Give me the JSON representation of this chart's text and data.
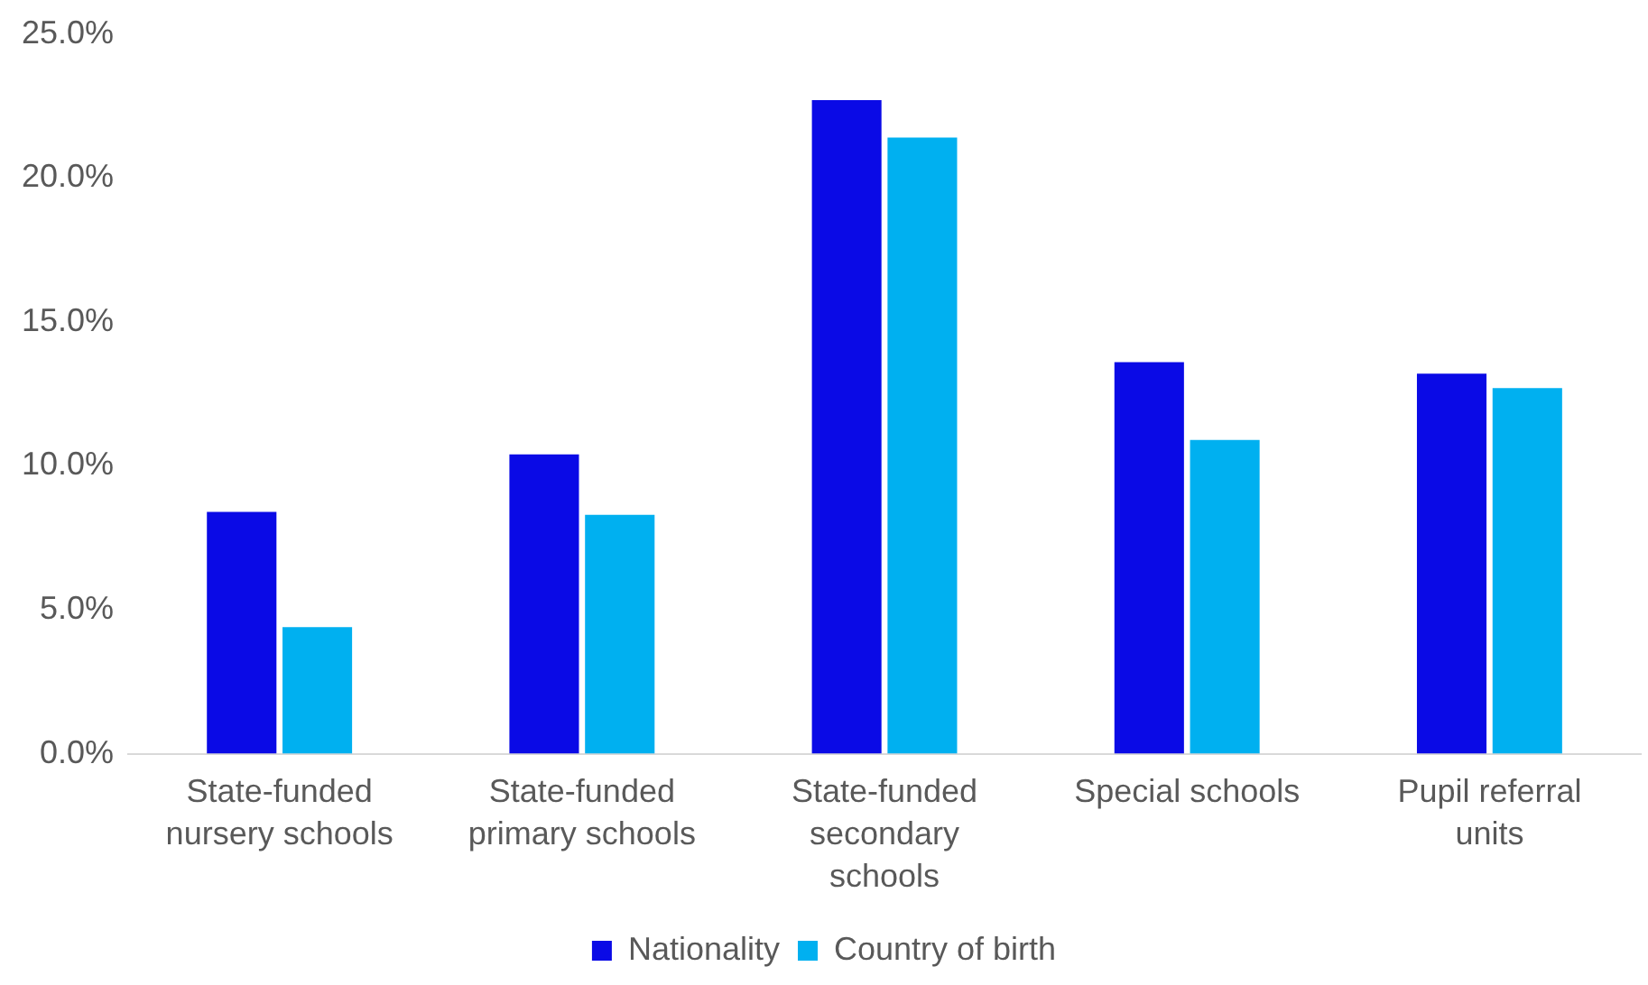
{
  "chart_data": {
    "type": "bar",
    "categories": [
      "State-funded nursery schools",
      "State-funded primary schools",
      "State-funded secondary schools",
      "Special schools",
      "Pupil referral units"
    ],
    "series": [
      {
        "name": "Nationality",
        "color": "#0a0ae6",
        "values": [
          8.4,
          10.4,
          22.7,
          13.6,
          13.2
        ]
      },
      {
        "name": "Country of birth",
        "color": "#00b0f0",
        "values": [
          4.4,
          8.3,
          21.4,
          10.9,
          12.7
        ]
      }
    ],
    "ylim": [
      0,
      25
    ],
    "yticks": [
      {
        "value": 0,
        "label": "0.0%"
      },
      {
        "value": 5,
        "label": "5.0%"
      },
      {
        "value": 10,
        "label": "10.0%"
      },
      {
        "value": 15,
        "label": "15.0%"
      },
      {
        "value": 20,
        "label": "20.0%"
      },
      {
        "value": 25,
        "label": "25.0%"
      }
    ],
    "grid": false,
    "legend": "bottom"
  }
}
